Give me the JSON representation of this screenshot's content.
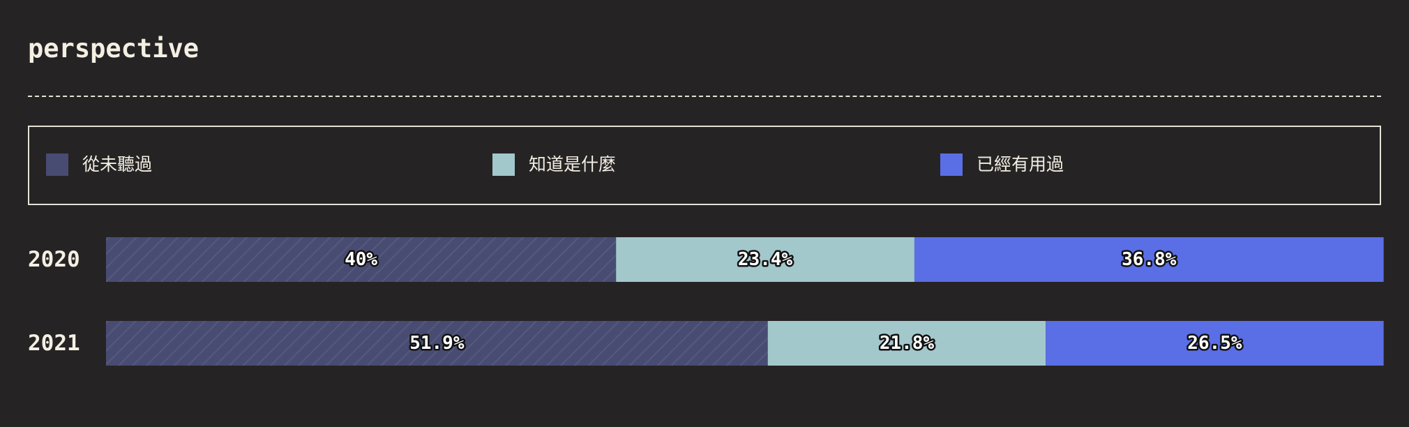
{
  "title": "perspective",
  "legend": [
    {
      "label": "從未聽過",
      "color": "#484c72"
    },
    {
      "label": "知道是什麼",
      "color": "#a3c8cc"
    },
    {
      "label": "已經有用過",
      "color": "#5a6ee6"
    }
  ],
  "chart_data": {
    "type": "bar",
    "orientation": "horizontal",
    "stacked": true,
    "normalized_percent": true,
    "categories": [
      "2020",
      "2021"
    ],
    "series": [
      {
        "name": "從未聽過",
        "values": [
          40,
          51.9
        ],
        "labels": [
          "40%",
          "51.9%"
        ],
        "color": "#484c72",
        "pattern": "diagonal-stripes"
      },
      {
        "name": "知道是什麼",
        "values": [
          23.4,
          21.8
        ],
        "labels": [
          "23.4%",
          "21.8%"
        ],
        "color": "#a3c8cc"
      },
      {
        "name": "已經有用過",
        "values": [
          36.8,
          26.5
        ],
        "labels": [
          "36.8%",
          "26.5%"
        ],
        "color": "#5a6ee6"
      }
    ],
    "xlim": [
      0,
      100
    ],
    "legend_position": "top",
    "grid": false
  }
}
